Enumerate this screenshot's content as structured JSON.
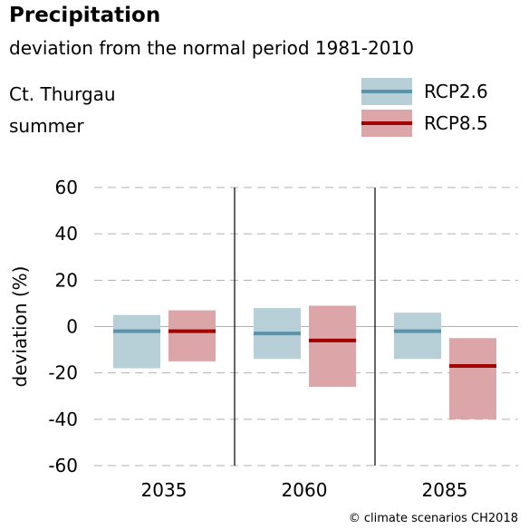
{
  "header": {
    "title": "Precipitation",
    "subtitle": "deviation from the normal period 1981-2010",
    "region": "Ct. Thurgau",
    "season": "summer"
  },
  "legend": [
    {
      "name": "RCP2.6",
      "box_color": "#b7d0d8",
      "line_color": "#5b93a8"
    },
    {
      "name": "RCP8.5",
      "box_color": "#dca5a8",
      "line_color": "#a00000"
    }
  ],
  "credit": "© climate scenarios CH2018",
  "chart_data": {
    "type": "bar",
    "title": "Precipitation",
    "subtitle": "deviation from the normal period 1981-2010",
    "ylabel": "deviation (%)",
    "ylim": [
      -60,
      60
    ],
    "yticks": [
      60,
      40,
      20,
      0,
      -20,
      -40,
      -60
    ],
    "categories": [
      "2035",
      "2060",
      "2085"
    ],
    "grid": true,
    "series": [
      {
        "name": "RCP2.6",
        "box_color": "#b7d0d8",
        "median_color": "#5b93a8",
        "low": [
          -18,
          -14,
          -14
        ],
        "high": [
          5,
          8,
          6
        ],
        "median": [
          -2,
          -3,
          -2
        ]
      },
      {
        "name": "RCP8.5",
        "box_color": "#dca5a8",
        "median_color": "#a00000",
        "low": [
          -15,
          -26,
          -40
        ],
        "high": [
          7,
          9,
          -5
        ],
        "median": [
          -2,
          -6,
          -17
        ]
      }
    ]
  }
}
